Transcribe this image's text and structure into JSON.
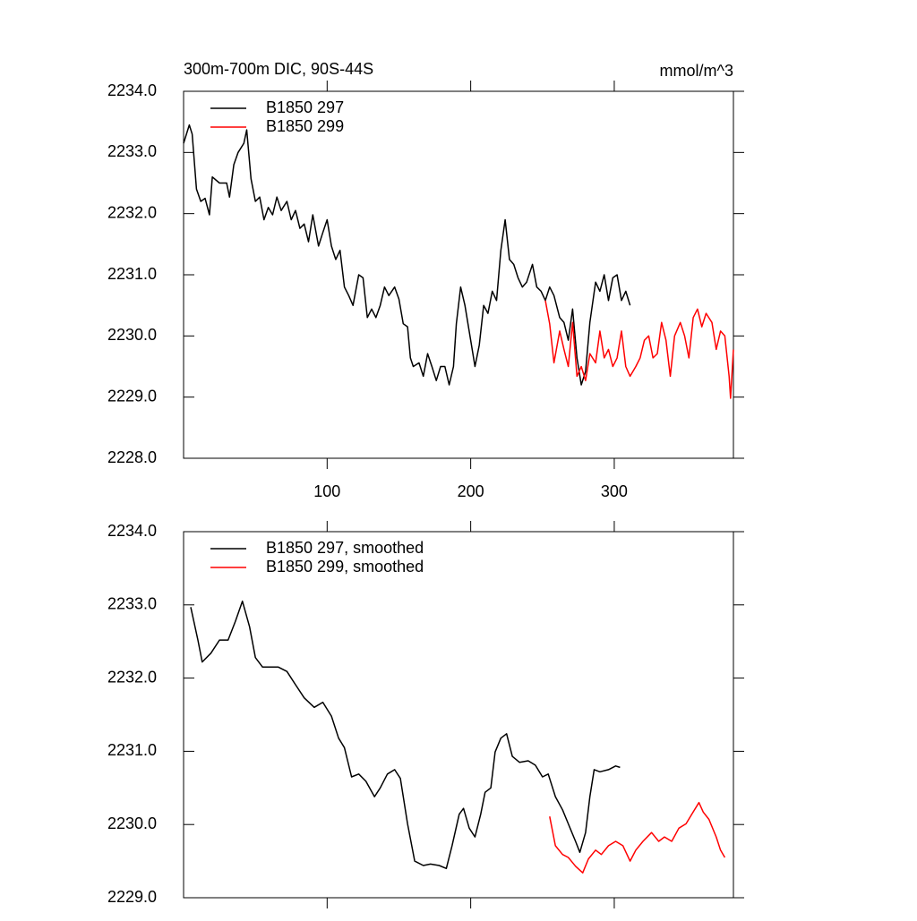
{
  "chart_data": [
    {
      "type": "line",
      "title": "300m-700m DIC, 90S-44S",
      "units": "mmol/m^3",
      "xlim": [
        0,
        383
      ],
      "ylim": [
        2228,
        2234
      ],
      "xticks": [
        100,
        200,
        300
      ],
      "xticklabels": true,
      "yticks": [
        {
          "value": 2228,
          "label": "2228.0"
        },
        {
          "value": 2229,
          "label": "2229.0"
        },
        {
          "value": 2230,
          "label": "2230.0"
        },
        {
          "value": 2231,
          "label": "2231.0"
        },
        {
          "value": 2232,
          "label": "2232.0"
        },
        {
          "value": 2233,
          "label": "2233.0"
        },
        {
          "value": 2234,
          "label": "2234.0"
        }
      ],
      "legend": "upper left",
      "series": [
        {
          "name": "B1850 297",
          "color": "#000000",
          "x": [
            0,
            4,
            6,
            9,
            12,
            15,
            18,
            20,
            25,
            30,
            32,
            35,
            38,
            42,
            44,
            47,
            50,
            53,
            56,
            59,
            62,
            65,
            68,
            72,
            75,
            78,
            81,
            84,
            87,
            90,
            94,
            97,
            100,
            103,
            106,
            109,
            112,
            115,
            118,
            122,
            125,
            128,
            131,
            134,
            137,
            140,
            143,
            147,
            150,
            153,
            156,
            158,
            160,
            164,
            167,
            170,
            173,
            176,
            179,
            182,
            185,
            188,
            190,
            193,
            196,
            200,
            203,
            206,
            209,
            212,
            215,
            218,
            221,
            224,
            227,
            230,
            233,
            236,
            239,
            243,
            246,
            249,
            252,
            255,
            258,
            262,
            265,
            268,
            271,
            274,
            277,
            280,
            283,
            287,
            290,
            293,
            296,
            299,
            302,
            305,
            308,
            311
          ],
          "values": [
            2233.15,
            2233.45,
            2233.3,
            2232.4,
            2232.2,
            2232.25,
            2231.98,
            2232.6,
            2232.5,
            2232.5,
            2232.27,
            2232.8,
            2233.0,
            2233.15,
            2233.37,
            2232.57,
            2232.2,
            2232.27,
            2231.9,
            2232.1,
            2231.98,
            2232.27,
            2232.05,
            2232.2,
            2231.9,
            2232.05,
            2231.76,
            2231.83,
            2231.54,
            2231.98,
            2231.47,
            2231.69,
            2231.9,
            2231.47,
            2231.25,
            2231.4,
            2230.8,
            2230.66,
            2230.5,
            2231.0,
            2230.95,
            2230.3,
            2230.44,
            2230.3,
            2230.5,
            2230.8,
            2230.66,
            2230.8,
            2230.6,
            2230.2,
            2230.15,
            2229.64,
            2229.5,
            2229.56,
            2229.34,
            2229.71,
            2229.5,
            2229.27,
            2229.5,
            2229.5,
            2229.2,
            2229.5,
            2230.2,
            2230.8,
            2230.5,
            2229.93,
            2229.5,
            2229.85,
            2230.5,
            2230.37,
            2230.73,
            2230.58,
            2231.4,
            2231.9,
            2231.25,
            2231.17,
            2230.95,
            2230.8,
            2230.88,
            2231.17,
            2230.8,
            2230.73,
            2230.58,
            2230.8,
            2230.66,
            2230.3,
            2230.22,
            2229.93,
            2230.44,
            2229.64,
            2229.2,
            2229.42,
            2230.22,
            2230.88,
            2230.73,
            2231.0,
            2230.58,
            2230.95,
            2231.0,
            2230.58,
            2230.73,
            2230.5
          ]
        },
        {
          "name": "B1850 299",
          "color": "#ff0000",
          "x": [
            252,
            255,
            258,
            262,
            265,
            268,
            271,
            274,
            277,
            280,
            283,
            287,
            290,
            293,
            296,
            299,
            302,
            305,
            308,
            311,
            315,
            318,
            321,
            324,
            327,
            330,
            333,
            336,
            339,
            342,
            346,
            349,
            352,
            355,
            358,
            361,
            364,
            368,
            371,
            374,
            377,
            380,
            381,
            383
          ],
          "values": [
            2230.58,
            2230.2,
            2229.56,
            2230.08,
            2229.78,
            2229.5,
            2230.22,
            2229.34,
            2229.5,
            2229.27,
            2229.71,
            2229.56,
            2230.08,
            2229.64,
            2229.78,
            2229.5,
            2229.64,
            2230.08,
            2229.5,
            2229.34,
            2229.5,
            2229.64,
            2229.93,
            2230.0,
            2229.64,
            2229.71,
            2230.22,
            2229.93,
            2229.34,
            2230.0,
            2230.22,
            2230.0,
            2229.64,
            2230.3,
            2230.44,
            2230.15,
            2230.37,
            2230.22,
            2229.78,
            2230.08,
            2230.0,
            2229.34,
            2228.98,
            2229.78
          ]
        }
      ]
    },
    {
      "type": "line",
      "xlim": [
        0,
        383
      ],
      "ylim": [
        2229,
        2234
      ],
      "xticks": [
        100,
        200,
        300
      ],
      "xticklabels": false,
      "yticks": [
        {
          "value": 2229,
          "label": "2229.0"
        },
        {
          "value": 2230,
          "label": "2230.0"
        },
        {
          "value": 2231,
          "label": "2231.0"
        },
        {
          "value": 2232,
          "label": "2232.0"
        },
        {
          "value": 2233,
          "label": "2233.0"
        },
        {
          "value": 2234,
          "label": "2234.0"
        }
      ],
      "legend": "upper left",
      "series": [
        {
          "name": "B1850 297, smoothed",
          "color": "#000000",
          "x": [
            5,
            10,
            13,
            19,
            25,
            31,
            36,
            41,
            46,
            50,
            55,
            59,
            66,
            72,
            78,
            84,
            91,
            97,
            103,
            108,
            112,
            117,
            122,
            127,
            133,
            137,
            142,
            147,
            151,
            156,
            161,
            167,
            172,
            178,
            183,
            187,
            192,
            195,
            199,
            203,
            207,
            210,
            214,
            217,
            221,
            225,
            229,
            234,
            240,
            245,
            250,
            254,
            259,
            264,
            268,
            273,
            276,
            280,
            283,
            286,
            290,
            296,
            301,
            304
          ],
          "values": [
            2232.97,
            2232.52,
            2232.22,
            2232.34,
            2232.52,
            2232.52,
            2232.77,
            2233.05,
            2232.7,
            2232.28,
            2232.15,
            2232.15,
            2232.15,
            2232.09,
            2231.91,
            2231.73,
            2231.6,
            2231.67,
            2231.48,
            2231.18,
            2231.05,
            2230.65,
            2230.69,
            2230.59,
            2230.38,
            2230.5,
            2230.69,
            2230.75,
            2230.63,
            2230.01,
            2229.5,
            2229.44,
            2229.46,
            2229.44,
            2229.4,
            2229.71,
            2230.14,
            2230.22,
            2229.95,
            2229.83,
            2230.14,
            2230.44,
            2230.5,
            2230.99,
            2231.18,
            2231.24,
            2230.93,
            2230.85,
            2230.87,
            2230.81,
            2230.65,
            2230.69,
            2230.38,
            2230.2,
            2230.01,
            2229.77,
            2229.62,
            2229.89,
            2230.38,
            2230.75,
            2230.72,
            2230.75,
            2230.8,
            2230.78
          ]
        },
        {
          "name": "B1850 299, smoothed",
          "color": "#ff0000",
          "x": [
            255,
            259,
            264,
            268,
            273,
            278,
            282,
            287,
            291,
            296,
            301,
            306,
            311,
            315,
            320,
            326,
            331,
            335,
            340,
            345,
            350,
            354,
            359,
            362,
            366,
            371,
            374,
            377
          ],
          "values": [
            2230.11,
            2229.71,
            2229.59,
            2229.55,
            2229.43,
            2229.34,
            2229.53,
            2229.65,
            2229.59,
            2229.71,
            2229.77,
            2229.71,
            2229.5,
            2229.65,
            2229.77,
            2229.89,
            2229.77,
            2229.83,
            2229.77,
            2229.95,
            2230.01,
            2230.14,
            2230.3,
            2230.17,
            2230.07,
            2229.83,
            2229.65,
            2229.55
          ]
        }
      ]
    }
  ]
}
